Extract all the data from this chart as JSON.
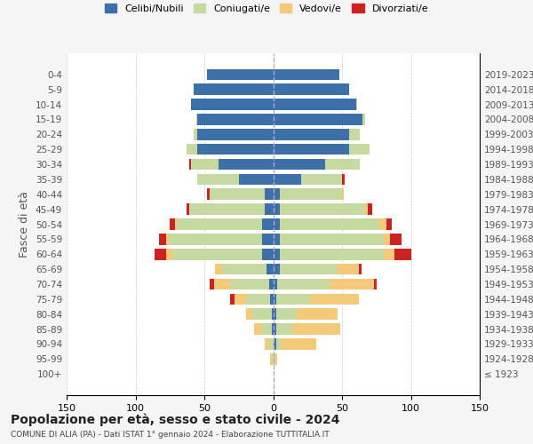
{
  "age_groups": [
    "100+",
    "95-99",
    "90-94",
    "85-89",
    "80-84",
    "75-79",
    "70-74",
    "65-69",
    "60-64",
    "55-59",
    "50-54",
    "45-49",
    "40-44",
    "35-39",
    "30-34",
    "25-29",
    "20-24",
    "15-19",
    "10-14",
    "5-9",
    "0-4"
  ],
  "birth_years": [
    "≤ 1923",
    "1924-1928",
    "1929-1933",
    "1934-1938",
    "1939-1943",
    "1944-1948",
    "1949-1953",
    "1954-1958",
    "1959-1963",
    "1964-1968",
    "1969-1973",
    "1974-1978",
    "1979-1983",
    "1984-1988",
    "1989-1993",
    "1994-1998",
    "1999-2003",
    "2004-2008",
    "2009-2013",
    "2014-2018",
    "2019-2023"
  ],
  "males": {
    "celibi": [
      0,
      0,
      0,
      1,
      1,
      2,
      3,
      5,
      8,
      8,
      8,
      6,
      6,
      25,
      40,
      55,
      55,
      55,
      60,
      58,
      48
    ],
    "coniugati": [
      0,
      1,
      3,
      8,
      14,
      18,
      28,
      32,
      65,
      68,
      62,
      55,
      40,
      30,
      20,
      8,
      3,
      1,
      0,
      0,
      0
    ],
    "vedovi": [
      0,
      1,
      3,
      5,
      5,
      8,
      12,
      5,
      5,
      2,
      1,
      0,
      0,
      0,
      0,
      0,
      0,
      0,
      0,
      0,
      0
    ],
    "divorziati": [
      0,
      0,
      0,
      0,
      0,
      3,
      3,
      0,
      8,
      5,
      4,
      2,
      2,
      0,
      1,
      0,
      0,
      0,
      0,
      0,
      0
    ]
  },
  "females": {
    "nubili": [
      0,
      0,
      2,
      2,
      2,
      2,
      3,
      5,
      5,
      5,
      5,
      5,
      5,
      20,
      38,
      55,
      55,
      65,
      60,
      55,
      48
    ],
    "coniugate": [
      0,
      1,
      4,
      12,
      15,
      25,
      38,
      42,
      75,
      75,
      72,
      62,
      45,
      30,
      25,
      15,
      8,
      2,
      1,
      0,
      0
    ],
    "vedove": [
      0,
      2,
      25,
      35,
      30,
      35,
      32,
      15,
      8,
      5,
      5,
      2,
      1,
      0,
      0,
      0,
      0,
      0,
      0,
      0,
      0
    ],
    "divorziate": [
      0,
      0,
      0,
      0,
      0,
      0,
      2,
      2,
      12,
      8,
      4,
      3,
      0,
      2,
      0,
      0,
      0,
      0,
      0,
      0,
      0
    ]
  },
  "color_celibi": "#3d6fa8",
  "color_coniugati": "#c5d9a0",
  "color_vedovi": "#f5c97a",
  "color_divorziati": "#cc2222",
  "xlim": 150,
  "title_main": "Popolazione per età, sesso e stato civile - 2024",
  "title_sub": "COMUNE DI ALIA (PA) - Dati ISTAT 1° gennaio 2024 - Elaborazione TUTTITALIA.IT",
  "ylabel_left": "Fasce di età",
  "legend_labels": [
    "Celibi/Nubili",
    "Coniugati/e",
    "Vedovi/e",
    "Divorziati/e"
  ],
  "bg_color": "#f5f5f5",
  "plot_bg_color": "#ffffff"
}
